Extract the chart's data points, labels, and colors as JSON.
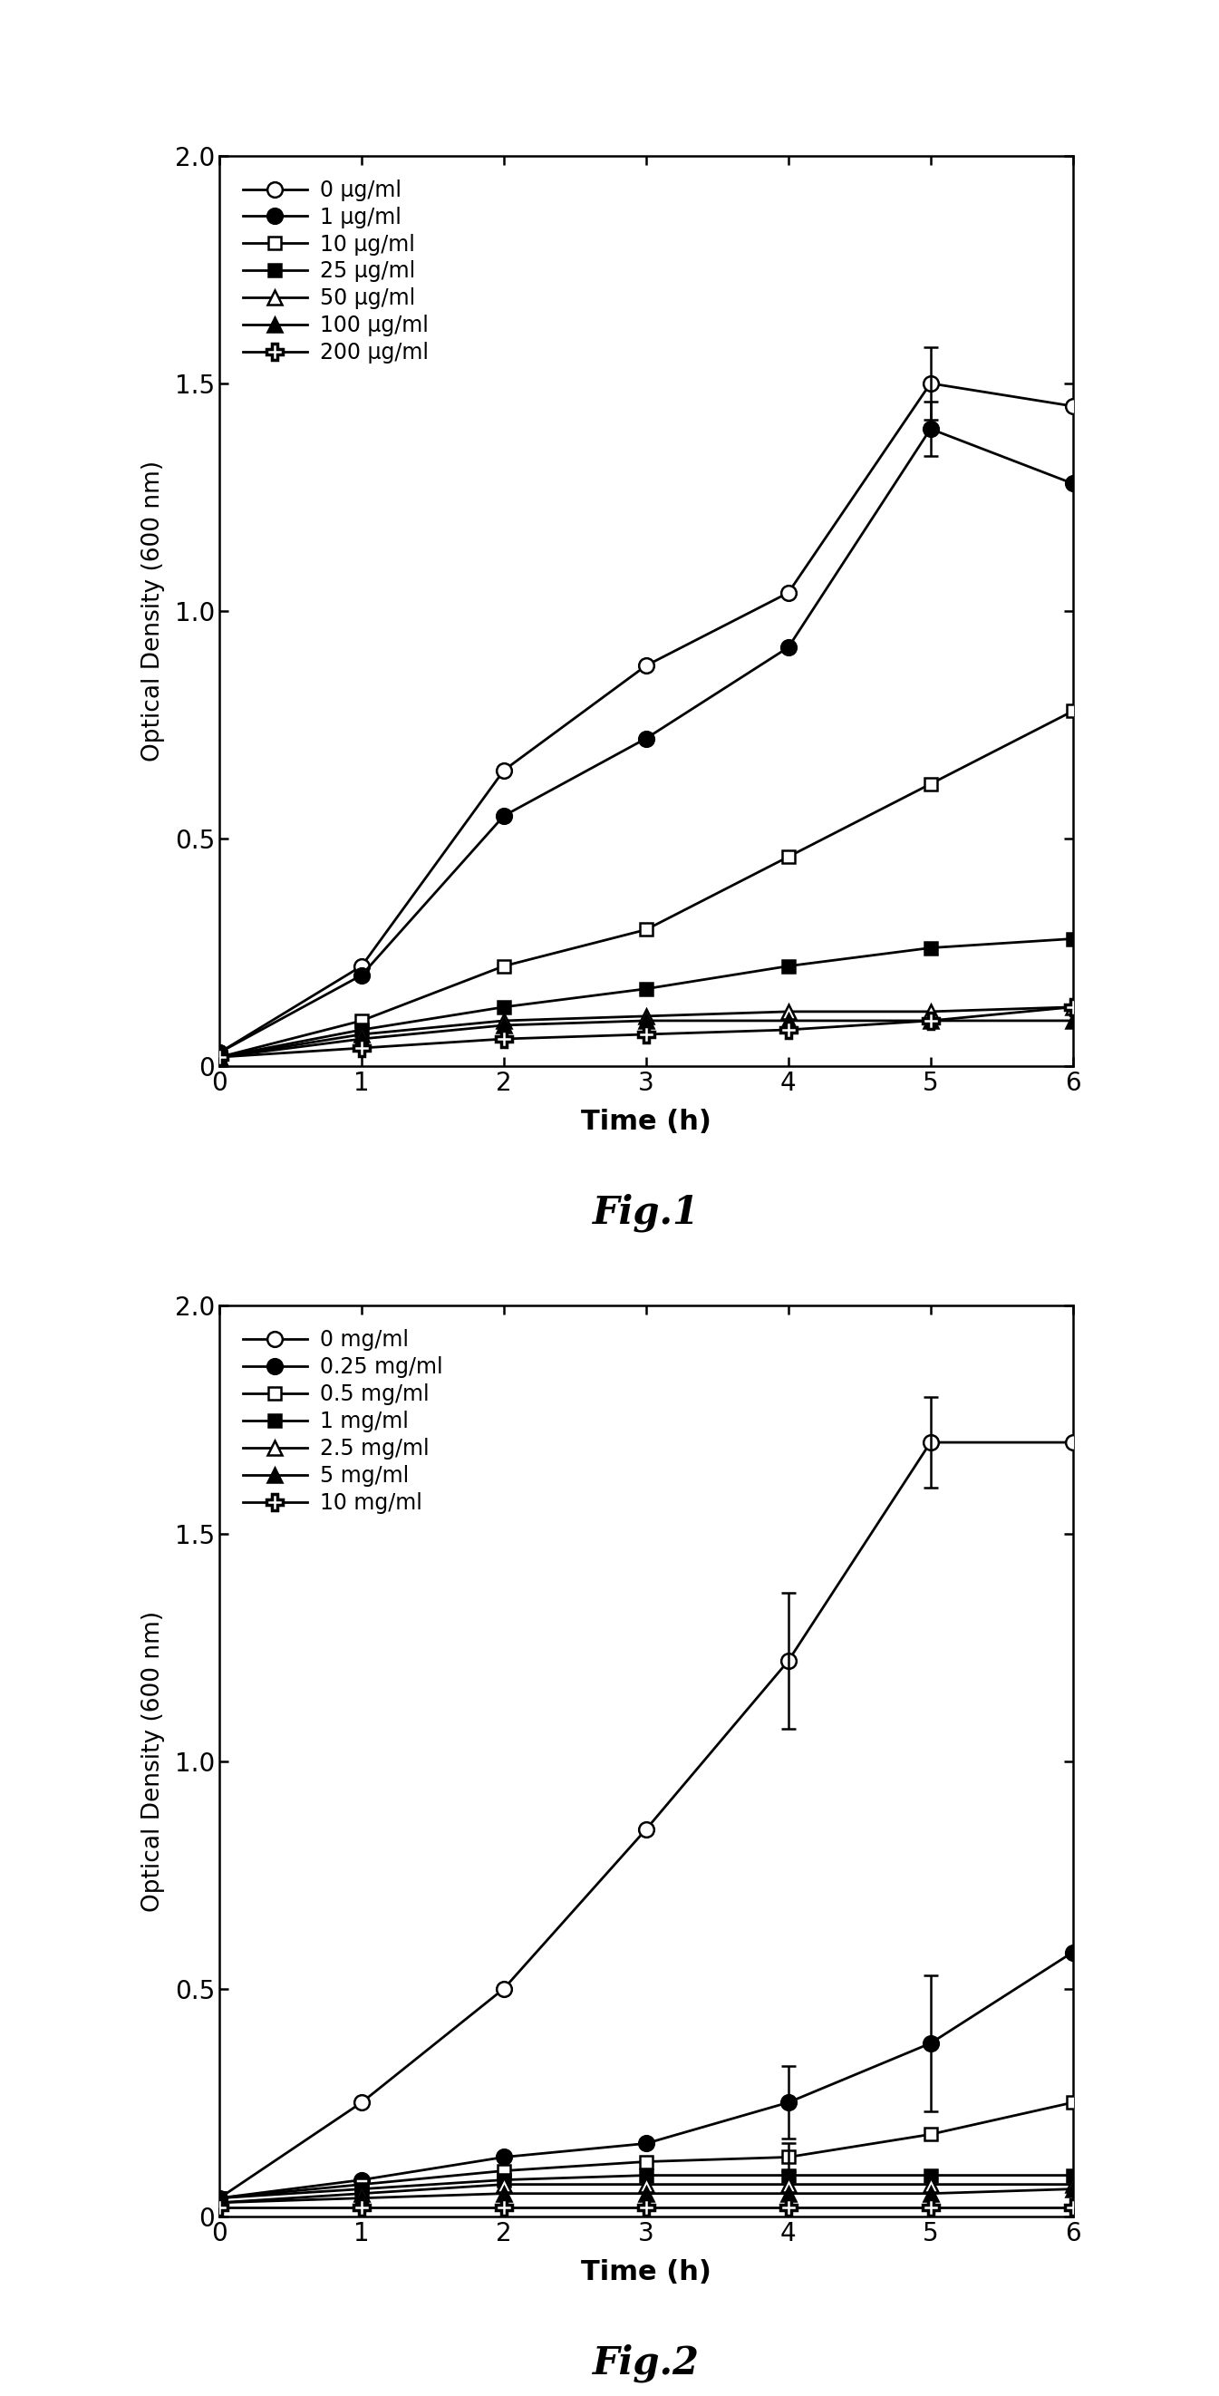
{
  "fig1": {
    "xlabel": "Time (h)",
    "ylabel": "Optical Density (600 nm)",
    "xlim": [
      0,
      6
    ],
    "ylim": [
      0,
      2
    ],
    "xticks": [
      0,
      1,
      2,
      3,
      4,
      5,
      6
    ],
    "yticks": [
      0,
      0.5,
      1.0,
      1.5,
      2.0
    ],
    "fig_label": "Fig.1",
    "series": [
      {
        "label": "0 μg/ml",
        "x": [
          0,
          1,
          2,
          3,
          4,
          5,
          6
        ],
        "y": [
          0.03,
          0.22,
          0.65,
          0.88,
          1.04,
          1.5,
          1.45
        ],
        "yerr": [
          0,
          0,
          0,
          0,
          0,
          0.08,
          0
        ],
        "marker": "o",
        "fillstyle": "none",
        "linewidth": 2.0
      },
      {
        "label": "1 μg/ml",
        "x": [
          0,
          1,
          2,
          3,
          4,
          5,
          6
        ],
        "y": [
          0.03,
          0.2,
          0.55,
          0.72,
          0.92,
          1.4,
          1.28
        ],
        "yerr": [
          0,
          0,
          0,
          0,
          0,
          0.06,
          0
        ],
        "marker": "o",
        "fillstyle": "full",
        "linewidth": 2.0
      },
      {
        "label": "10 μg/ml",
        "x": [
          0,
          1,
          2,
          3,
          4,
          5,
          6
        ],
        "y": [
          0.02,
          0.1,
          0.22,
          0.3,
          0.46,
          0.62,
          0.78
        ],
        "yerr": [
          0,
          0,
          0,
          0,
          0,
          0,
          0
        ],
        "marker": "s",
        "fillstyle": "none",
        "linewidth": 2.0
      },
      {
        "label": "25 μg/ml",
        "x": [
          0,
          1,
          2,
          3,
          4,
          5,
          6
        ],
        "y": [
          0.02,
          0.08,
          0.13,
          0.17,
          0.22,
          0.26,
          0.28
        ],
        "yerr": [
          0,
          0,
          0,
          0,
          0,
          0,
          0
        ],
        "marker": "s",
        "fillstyle": "full",
        "linewidth": 2.0
      },
      {
        "label": "50 μg/ml",
        "x": [
          0,
          1,
          2,
          3,
          4,
          5,
          6
        ],
        "y": [
          0.02,
          0.07,
          0.1,
          0.11,
          0.12,
          0.12,
          0.13
        ],
        "yerr": [
          0,
          0,
          0,
          0,
          0,
          0,
          0
        ],
        "marker": "^",
        "fillstyle": "none",
        "linewidth": 2.0
      },
      {
        "label": "100 μg/ml",
        "x": [
          0,
          1,
          2,
          3,
          4,
          5,
          6
        ],
        "y": [
          0.02,
          0.06,
          0.09,
          0.1,
          0.1,
          0.1,
          0.1
        ],
        "yerr": [
          0,
          0,
          0,
          0,
          0,
          0,
          0
        ],
        "marker": "^",
        "fillstyle": "full",
        "linewidth": 2.0
      },
      {
        "label": "200 μg/ml",
        "x": [
          0,
          1,
          2,
          3,
          4,
          5,
          6
        ],
        "y": [
          0.02,
          0.04,
          0.06,
          0.07,
          0.08,
          0.1,
          0.13
        ],
        "yerr": [
          0,
          0,
          0,
          0,
          0,
          0,
          0
        ],
        "marker": "P",
        "fillstyle": "none",
        "linewidth": 2.0
      }
    ]
  },
  "fig2": {
    "xlabel": "Time (h)",
    "ylabel": "Optical Density (600 nm)",
    "xlim": [
      0,
      6
    ],
    "ylim": [
      0,
      2
    ],
    "xticks": [
      0,
      1,
      2,
      3,
      4,
      5,
      6
    ],
    "yticks": [
      0,
      0.5,
      1.0,
      1.5,
      2.0
    ],
    "fig_label": "Fig.2",
    "series": [
      {
        "label": "0 mg/ml",
        "x": [
          0,
          1,
          2,
          3,
          4,
          5,
          6
        ],
        "y": [
          0.04,
          0.25,
          0.5,
          0.85,
          1.22,
          1.7,
          1.7
        ],
        "yerr": [
          0,
          0,
          0,
          0,
          0.15,
          0.1,
          0
        ],
        "marker": "o",
        "fillstyle": "none",
        "linewidth": 2.0
      },
      {
        "label": "0.25 mg/ml",
        "x": [
          0,
          1,
          2,
          3,
          4,
          5,
          6
        ],
        "y": [
          0.04,
          0.08,
          0.13,
          0.16,
          0.25,
          0.38,
          0.58
        ],
        "yerr": [
          0,
          0,
          0,
          0,
          0.08,
          0.15,
          0
        ],
        "marker": "o",
        "fillstyle": "full",
        "linewidth": 2.0
      },
      {
        "label": "0.5 mg/ml",
        "x": [
          0,
          1,
          2,
          3,
          4,
          5,
          6
        ],
        "y": [
          0.04,
          0.07,
          0.1,
          0.12,
          0.13,
          0.18,
          0.25
        ],
        "yerr": [
          0,
          0,
          0,
          0,
          0.03,
          0,
          0
        ],
        "marker": "s",
        "fillstyle": "none",
        "linewidth": 2.0
      },
      {
        "label": "1 mg/ml",
        "x": [
          0,
          1,
          2,
          3,
          4,
          5,
          6
        ],
        "y": [
          0.04,
          0.06,
          0.08,
          0.09,
          0.09,
          0.09,
          0.09
        ],
        "yerr": [
          0,
          0,
          0,
          0,
          0,
          0,
          0
        ],
        "marker": "s",
        "fillstyle": "full",
        "linewidth": 2.0
      },
      {
        "label": "2.5 mg/ml",
        "x": [
          0,
          1,
          2,
          3,
          4,
          5,
          6
        ],
        "y": [
          0.03,
          0.05,
          0.07,
          0.07,
          0.07,
          0.07,
          0.07
        ],
        "yerr": [
          0,
          0,
          0,
          0,
          0,
          0,
          0
        ],
        "marker": "^",
        "fillstyle": "none",
        "linewidth": 2.0
      },
      {
        "label": "5 mg/ml",
        "x": [
          0,
          1,
          2,
          3,
          4,
          5,
          6
        ],
        "y": [
          0.03,
          0.04,
          0.05,
          0.05,
          0.05,
          0.05,
          0.06
        ],
        "yerr": [
          0,
          0,
          0,
          0,
          0,
          0,
          0
        ],
        "marker": "^",
        "fillstyle": "full",
        "linewidth": 2.0
      },
      {
        "label": "10 mg/ml",
        "x": [
          0,
          1,
          2,
          3,
          4,
          5,
          6
        ],
        "y": [
          0.02,
          0.02,
          0.02,
          0.02,
          0.02,
          0.02,
          0.02
        ],
        "yerr": [
          0,
          0,
          0,
          0,
          0,
          0,
          0
        ],
        "marker": "P",
        "fillstyle": "none",
        "linewidth": 2.0
      }
    ]
  },
  "background_color": "#ffffff",
  "fig_width": 13.45,
  "fig_height": 26.43
}
